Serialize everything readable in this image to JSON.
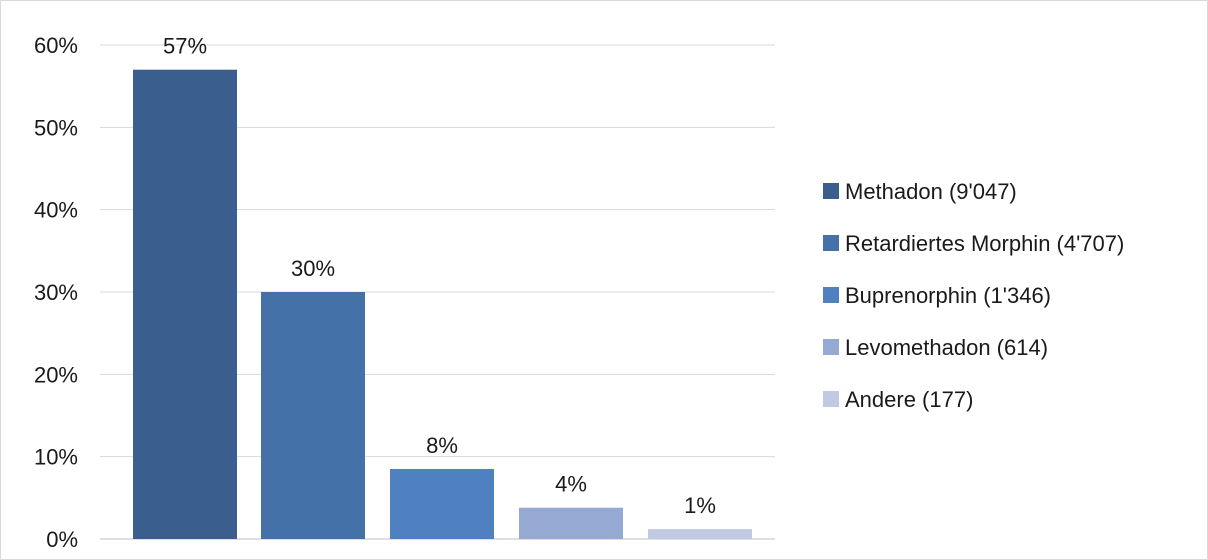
{
  "chart_data": {
    "type": "bar",
    "title": "",
    "xlabel": "",
    "ylabel": "",
    "ylim": [
      0,
      60
    ],
    "y_ticks": [
      "0%",
      "10%",
      "20%",
      "30%",
      "40%",
      "50%",
      "60%"
    ],
    "y_tick_values": [
      0,
      10,
      20,
      30,
      40,
      50,
      60
    ],
    "grid": true,
    "legend_position": "right",
    "series": [
      {
        "name": "Methadon (9'047)",
        "value": 57,
        "label": "57%",
        "color": "#3a5f8f"
      },
      {
        "name": "Retardiertes Morphin (4'707)",
        "value": 30,
        "label": "30%",
        "color": "#4472a8"
      },
      {
        "name": "Buprenorphin (1'346)",
        "value": 8.5,
        "label": "8%",
        "color": "#4f81c0"
      },
      {
        "name": "Levomethadon (614)",
        "value": 3.8,
        "label": "4%",
        "color": "#95a9d2"
      },
      {
        "name": "Andere (177)",
        "value": 1.2,
        "label": "1%",
        "color": "#c0cbe3"
      }
    ]
  }
}
